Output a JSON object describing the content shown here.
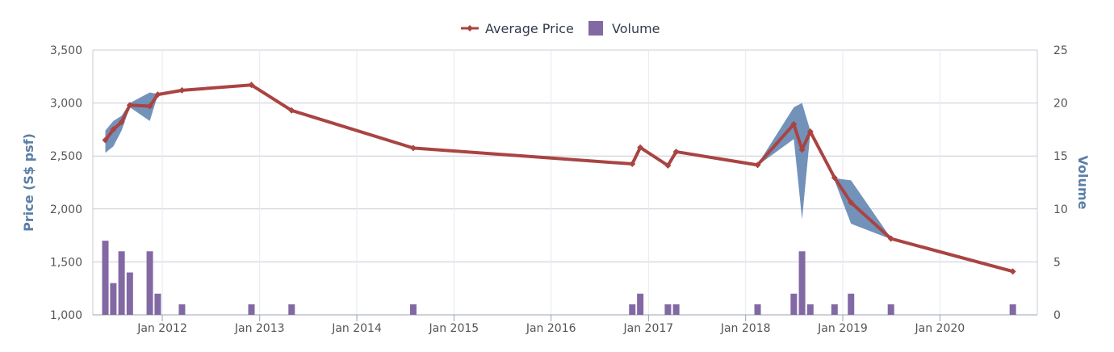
{
  "chart_data": {
    "type": "line",
    "legend": {
      "placement": "top-center",
      "items": [
        {
          "label": "Average Price",
          "color": "#a94442",
          "kind": "line"
        },
        {
          "label": "Volume",
          "color": "#8369a3",
          "kind": "bar"
        }
      ]
    },
    "x_axis": {
      "type": "date",
      "range": [
        "2011-04-15",
        "2021-01-01"
      ],
      "tick_labels": [
        "Jan 2012",
        "Jan 2013",
        "Jan 2014",
        "Jan 2015",
        "Jan 2016",
        "Jan 2017",
        "Jan 2018",
        "Jan 2019",
        "Jan 2020"
      ],
      "tick_dates": [
        "2012-01-01",
        "2013-01-01",
        "2014-01-01",
        "2015-01-01",
        "2016-01-01",
        "2017-01-01",
        "2018-01-01",
        "2019-01-01",
        "2020-01-01"
      ]
    },
    "y_axis_left": {
      "label": "Price (S$ psf)",
      "range": [
        1000,
        3500
      ],
      "tick_labels": [
        "1,000",
        "1,500",
        "2,000",
        "2,500",
        "3,000",
        "3,500"
      ],
      "ticks": [
        1000,
        1500,
        2000,
        2500,
        3000,
        3500
      ]
    },
    "y_axis_right": {
      "label": "Volume",
      "range": [
        0,
        25
      ],
      "tick_labels": [
        "0",
        "5",
        "10",
        "15",
        "20",
        "25"
      ],
      "ticks": [
        0,
        5,
        10,
        15,
        20,
        25
      ]
    },
    "grid": true,
    "series": [
      {
        "name": "Average Price",
        "type": "line",
        "axis": "left",
        "color": "#a94442",
        "points": [
          {
            "x": "2011-06-01",
            "y": 2650
          },
          {
            "x": "2011-07-01",
            "y": 2750
          },
          {
            "x": "2011-08-01",
            "y": 2820
          },
          {
            "x": "2011-09-01",
            "y": 2980
          },
          {
            "x": "2011-11-15",
            "y": 2970
          },
          {
            "x": "2011-12-15",
            "y": 3080
          },
          {
            "x": "2012-03-15",
            "y": 3120
          },
          {
            "x": "2012-12-01",
            "y": 3170
          },
          {
            "x": "2013-05-01",
            "y": 2930
          },
          {
            "x": "2014-08-01",
            "y": 2575
          },
          {
            "x": "2016-11-01",
            "y": 2425
          },
          {
            "x": "2016-12-01",
            "y": 2580
          },
          {
            "x": "2017-03-15",
            "y": 2410
          },
          {
            "x": "2017-04-15",
            "y": 2540
          },
          {
            "x": "2018-02-15",
            "y": 2415
          },
          {
            "x": "2018-07-01",
            "y": 2800
          },
          {
            "x": "2018-08-01",
            "y": 2560
          },
          {
            "x": "2018-09-01",
            "y": 2730
          },
          {
            "x": "2018-12-01",
            "y": 2295
          },
          {
            "x": "2019-02-01",
            "y": 2060
          },
          {
            "x": "2019-07-01",
            "y": 1720
          },
          {
            "x": "2020-10-01",
            "y": 1410
          }
        ]
      },
      {
        "name": "Price Range",
        "type": "arearange",
        "axis": "left",
        "color": "#5b7fae",
        "points": [
          {
            "x": "2011-06-01",
            "low": 2530,
            "high": 2740
          },
          {
            "x": "2011-07-01",
            "low": 2590,
            "high": 2830
          },
          {
            "x": "2011-08-01",
            "low": 2740,
            "high": 2880
          },
          {
            "x": "2011-09-01",
            "low": 2960,
            "high": 3000
          },
          {
            "x": "2011-11-15",
            "low": 2830,
            "high": 3100
          },
          {
            "x": "2011-12-15",
            "low": 3075,
            "high": 3085
          },
          {
            "x": "2018-02-15",
            "low": 2410,
            "high": 2420
          },
          {
            "x": "2018-07-01",
            "low": 2660,
            "high": 2960
          },
          {
            "x": "2018-08-01",
            "low": 1900,
            "high": 3000
          },
          {
            "x": "2018-09-01",
            "low": 2720,
            "high": 2740
          },
          {
            "x": "2018-12-01",
            "low": 2270,
            "high": 2290
          },
          {
            "x": "2019-02-01",
            "low": 1860,
            "high": 2270
          },
          {
            "x": "2019-07-01",
            "low": 1715,
            "high": 1725
          }
        ]
      },
      {
        "name": "Volume",
        "type": "column",
        "axis": "right",
        "color": "#8369a3",
        "points": [
          {
            "x": "2011-06-01",
            "y": 7
          },
          {
            "x": "2011-07-01",
            "y": 3
          },
          {
            "x": "2011-08-01",
            "y": 6
          },
          {
            "x": "2011-09-01",
            "y": 4
          },
          {
            "x": "2011-11-15",
            "y": 6
          },
          {
            "x": "2011-12-15",
            "y": 2
          },
          {
            "x": "2012-03-15",
            "y": 1
          },
          {
            "x": "2012-12-01",
            "y": 1
          },
          {
            "x": "2013-05-01",
            "y": 1
          },
          {
            "x": "2014-08-01",
            "y": 1
          },
          {
            "x": "2016-11-01",
            "y": 1
          },
          {
            "x": "2016-12-01",
            "y": 2
          },
          {
            "x": "2017-03-15",
            "y": 1
          },
          {
            "x": "2017-04-15",
            "y": 1
          },
          {
            "x": "2018-02-15",
            "y": 1
          },
          {
            "x": "2018-07-01",
            "y": 2
          },
          {
            "x": "2018-08-01",
            "y": 6
          },
          {
            "x": "2018-09-01",
            "y": 1
          },
          {
            "x": "2018-12-01",
            "y": 1
          },
          {
            "x": "2019-02-01",
            "y": 2
          },
          {
            "x": "2019-07-01",
            "y": 1
          },
          {
            "x": "2020-10-01",
            "y": 1
          }
        ]
      }
    ]
  }
}
